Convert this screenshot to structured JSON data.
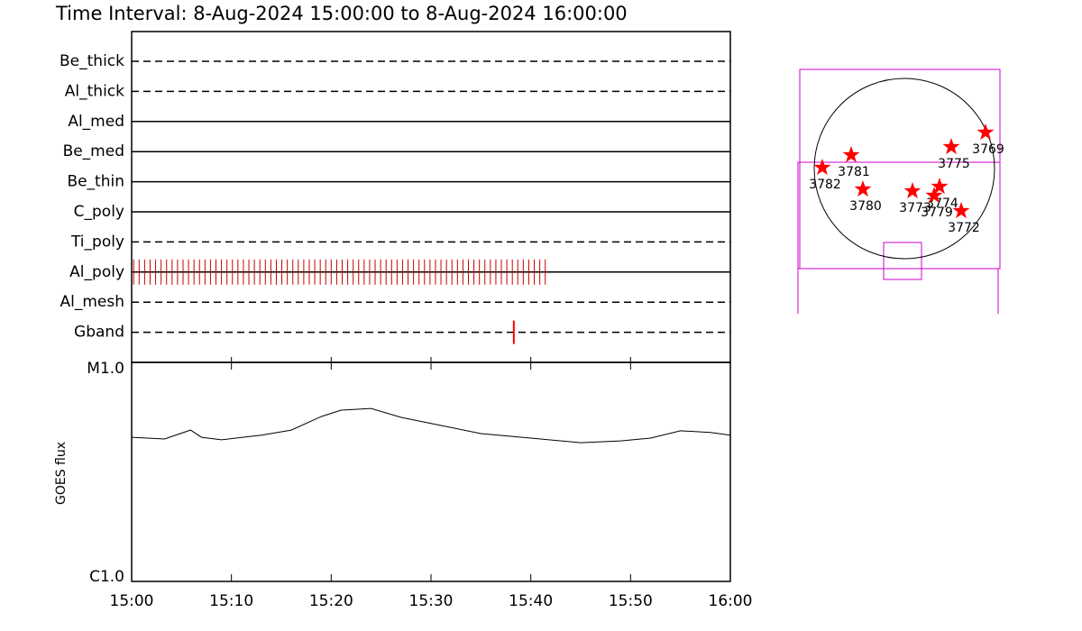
{
  "chart_data": [
    {
      "type": "timeline",
      "title": "Time Interval:  8-Aug-2024 15:00:00 to  8-Aug-2024 16:00:00",
      "categories": [
        "Be_thick",
        "Al_thick",
        "Al_med",
        "Be_med",
        "Be_thin",
        "C_poly",
        "Ti_poly",
        "Al_poly",
        "Al_mesh",
        "Gband"
      ],
      "styles": [
        "dashed",
        "dashed",
        "solid",
        "solid",
        "solid",
        "solid",
        "dashed",
        "solid",
        "dashed",
        "dashed"
      ],
      "xlim": [
        0,
        60
      ],
      "series": [
        {
          "row": 7,
          "color": "#cc0000",
          "x": [
            0.2,
            0.75,
            1.3,
            1.85,
            2.4,
            2.95,
            3.5,
            4.05,
            4.6,
            5.15,
            5.7,
            6.25,
            6.8,
            7.35,
            7.9,
            8.45,
            9,
            9.55,
            10.1,
            10.65,
            11.2,
            11.75,
            12.3,
            12.85,
            13.4,
            13.95,
            14.5,
            15.05,
            15.6,
            16.15,
            16.7,
            17.25,
            17.8,
            18.35,
            18.9,
            19.45,
            20,
            20.55,
            21.1,
            21.65,
            22.2,
            22.75,
            23.3,
            23.85,
            24.4,
            24.95,
            25.5,
            26.05,
            26.6,
            27.15,
            27.7,
            28.25,
            28.8,
            29.35,
            29.9,
            30.45,
            31,
            31.55,
            32.1,
            32.65,
            33.2,
            33.75,
            34.3,
            34.85,
            35.4,
            35.95,
            36.5,
            37.05,
            37.6,
            38.15,
            38.7,
            39.25,
            39.8,
            40.35,
            40.9,
            41.45
          ]
        },
        {
          "row": 9,
          "color": "#ff0000",
          "x": [
            38.3
          ]
        }
      ]
    },
    {
      "type": "line",
      "ylabel": "GOES flux",
      "log_scale": true,
      "color": "#000000",
      "x": [
        0,
        3.3,
        5.9,
        7,
        9,
        13,
        16,
        19,
        21,
        24,
        27,
        31,
        35,
        40,
        45,
        49,
        52,
        55,
        58,
        60
      ],
      "values": [
        4.55e-06,
        4.47e-06,
        4.91e-06,
        4.55e-06,
        4.43e-06,
        4.65e-06,
        4.91e-06,
        5.66e-06,
        6.05e-06,
        6.16e-06,
        5.61e-06,
        5.15e-06,
        4.73e-06,
        4.51e-06,
        4.3e-06,
        4.38e-06,
        4.51e-06,
        4.87e-06,
        4.79e-06,
        4.65e-06
      ],
      "xlim": [
        0,
        60
      ],
      "xticks": [
        {
          "value": 0,
          "label": "15:00"
        },
        {
          "value": 10,
          "label": "15:10"
        },
        {
          "value": 20,
          "label": "15:20"
        },
        {
          "value": 30,
          "label": "15:30"
        },
        {
          "value": 40,
          "label": "15:40"
        },
        {
          "value": 50,
          "label": "15:50"
        },
        {
          "value": 60,
          "label": "16:00"
        }
      ],
      "ylim": [
        1e-06,
        1e-05
      ],
      "yticks": [
        {
          "value": 1e-05,
          "label": "M1.0"
        },
        {
          "value": 1e-06,
          "label": "C1.0"
        }
      ]
    },
    {
      "type": "map",
      "color": "#ff0000",
      "labels": [
        "3781",
        "3782",
        "3780",
        "3775",
        "3769",
        "3773",
        "3774",
        "3779",
        "3772"
      ],
      "x": [
        -0.59,
        -0.91,
        -0.46,
        0.52,
        0.9,
        0.09,
        0.39,
        0.33,
        0.63
      ],
      "y": [
        0.15,
        0.01,
        -0.23,
        0.24,
        0.4,
        -0.25,
        -0.2,
        -0.3,
        -0.47
      ]
    }
  ]
}
